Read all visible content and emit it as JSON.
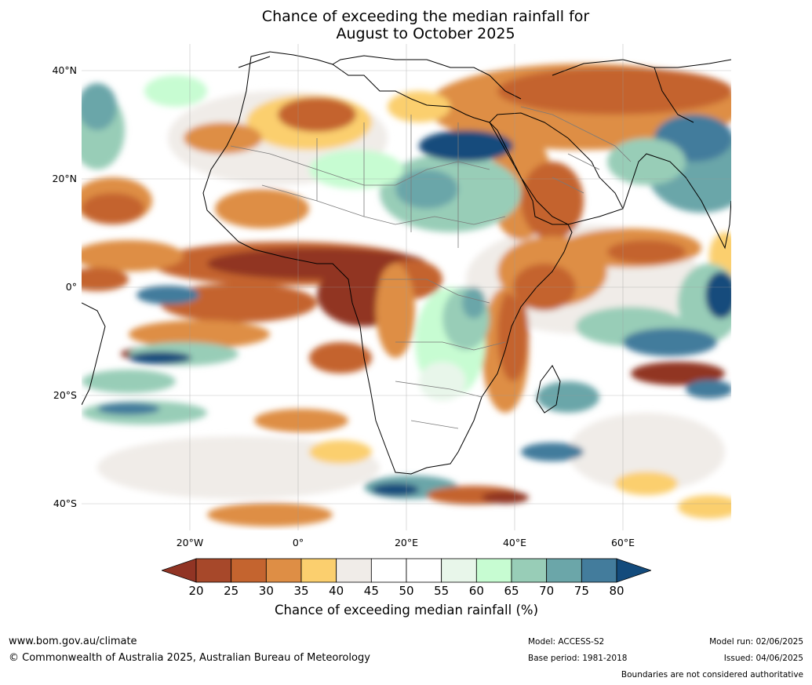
{
  "title": {
    "line1": "Chance of exceeding the median rainfall for",
    "line2": "August to October 2025"
  },
  "map": {
    "lat_labels": [
      "40°N",
      "20°N",
      "0°",
      "20°S",
      "40°S"
    ],
    "lon_labels": [
      "20°W",
      "0°",
      "20°E",
      "40°E",
      "60°E"
    ]
  },
  "colorbar": {
    "ticks": [
      "20",
      "25",
      "30",
      "35",
      "40",
      "45",
      "50",
      "55",
      "60",
      "65",
      "70",
      "75",
      "80"
    ],
    "colors": [
      "#a7482a",
      "#c4642f",
      "#de8e45",
      "#fbcf6e",
      "#f0ece8",
      "#ffffff",
      "#ffffff",
      "#e8f6ea",
      "#c7fcd2",
      "#98cdb7",
      "#6ba6a9",
      "#437c9c"
    ],
    "under_color": "#913424",
    "over_color": "#134b7c",
    "title": "Chance of exceeding median rainfall (%)"
  },
  "footer": {
    "website": "www.bom.gov.au/climate",
    "copyright": "© Commonwealth of Australia 2025, Australian Bureau of Meteorology",
    "model": "Model: ACCESS-S2",
    "base_period": "Base period: 1981-2018",
    "model_run": "Model run: 02/06/2025",
    "issued": "Issued: 04/06/2025",
    "disclaimer": "Boundaries are not considered authoritative"
  }
}
